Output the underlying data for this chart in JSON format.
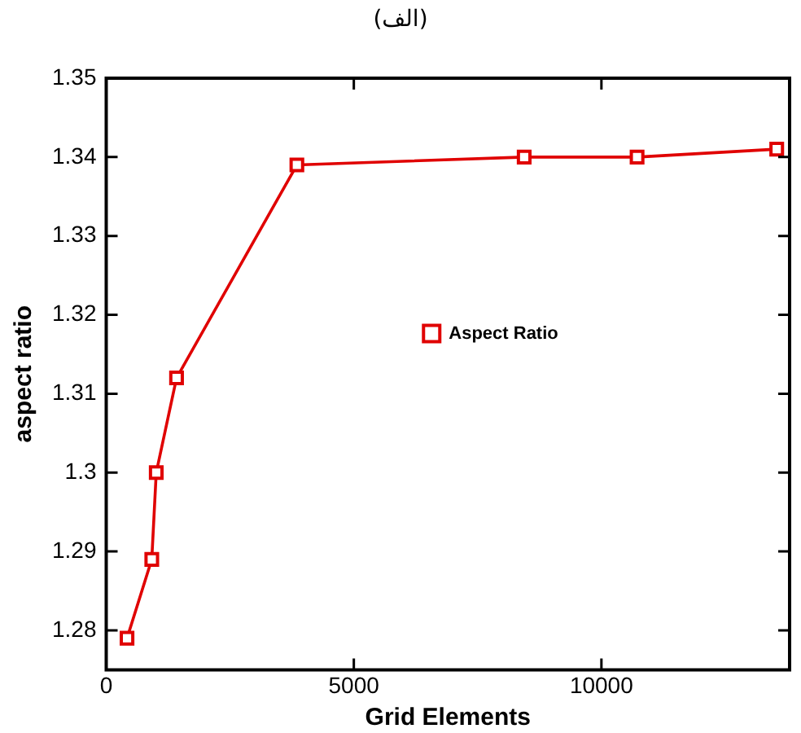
{
  "chart_data": {
    "type": "line",
    "title": "(الف)",
    "xlabel": "Grid Elements",
    "ylabel": "aspect ratio",
    "x": [
      420,
      920,
      1010,
      1420,
      3850,
      8440,
      10720,
      13540
    ],
    "series": [
      {
        "name": "Aspect Ratio",
        "color": "#e00000",
        "values": [
          1.279,
          1.289,
          1.3,
          1.312,
          1.339,
          1.34,
          1.34,
          1.341
        ]
      }
    ],
    "xlim": [
      0,
      13800
    ],
    "xticks": [
      0,
      5000,
      10000
    ],
    "ylim": [
      1.275,
      1.35
    ],
    "yticks": [
      1.28,
      1.29,
      1.3,
      1.31,
      1.32,
      1.33,
      1.34,
      1.35
    ],
    "grid": false,
    "legend": "right",
    "marker": "square",
    "line_style": "solid"
  }
}
